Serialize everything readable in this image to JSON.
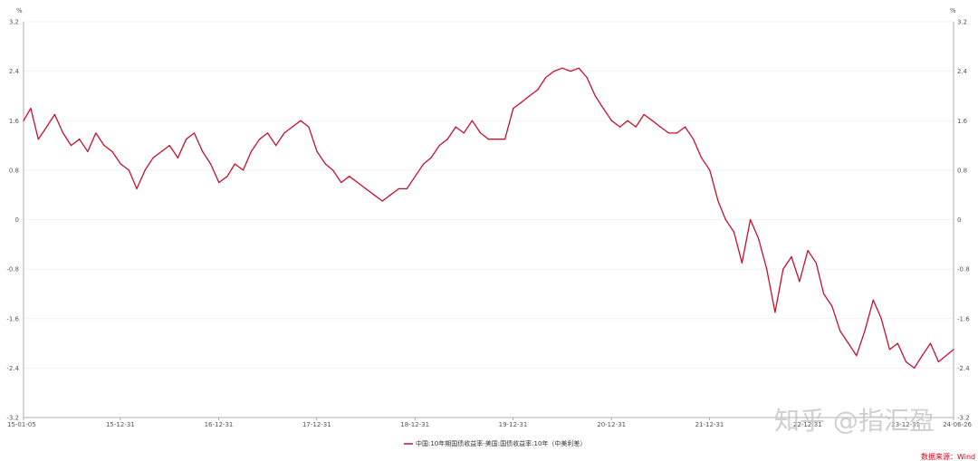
{
  "watermark": "知乎 @指汇盈",
  "source": "数据来源：Wind",
  "chart_data": {
    "type": "line",
    "title": "",
    "xlabel": "",
    "ylabel": "%",
    "y2label": "%",
    "ylim": [
      -3.2,
      3.2
    ],
    "yticks": [
      3.2,
      2.4,
      1.6,
      0.8,
      0,
      -0.8,
      -1.6,
      -2.4,
      -3.2
    ],
    "ytick_labels": [
      "3.2",
      "2.4",
      "1.6",
      "0.8",
      "0",
      "-0.8",
      "-1.6",
      "-2.4",
      "-3.2"
    ],
    "xlim": [
      "2015-01-05",
      "2024-06-26"
    ],
    "xticks": [
      "2015-01-05",
      "2015-12-31",
      "2016-12-31",
      "2017-12-31",
      "2018-12-31",
      "2019-12-31",
      "2020-12-31",
      "2021-12-31",
      "2022-12-31",
      "2023-12-31",
      "2024-06-26"
    ],
    "xtick_labels": [
      "15-01-05",
      "15-12-31",
      "16-12-31",
      "17-12-31",
      "18-12-31",
      "19-12-31",
      "20-12-31",
      "21-12-31",
      "22-12-31",
      "23-12-31",
      "24-06-26"
    ],
    "grid": true,
    "legend_position": "bottom",
    "color": "#c8102e",
    "series": [
      {
        "name": "中国:10年期国债收益率-美国:国债收益率:10年（中美利差）",
        "x": [
          "2015-01-05",
          "2015-02-01",
          "2015-03-01",
          "2015-04-01",
          "2015-05-01",
          "2015-06-01",
          "2015-07-01",
          "2015-08-01",
          "2015-09-01",
          "2015-10-01",
          "2015-11-01",
          "2015-12-01",
          "2016-01-01",
          "2016-02-01",
          "2016-03-01",
          "2016-04-01",
          "2016-05-01",
          "2016-06-01",
          "2016-07-01",
          "2016-08-01",
          "2016-09-01",
          "2016-10-01",
          "2016-11-01",
          "2016-12-01",
          "2017-01-01",
          "2017-02-01",
          "2017-03-01",
          "2017-04-01",
          "2017-05-01",
          "2017-06-01",
          "2017-07-01",
          "2017-08-01",
          "2017-09-01",
          "2017-10-01",
          "2017-11-01",
          "2017-12-01",
          "2018-01-01",
          "2018-02-01",
          "2018-03-01",
          "2018-04-01",
          "2018-05-01",
          "2018-06-01",
          "2018-07-01",
          "2018-08-01",
          "2018-09-01",
          "2018-10-01",
          "2018-11-01",
          "2018-12-01",
          "2019-01-01",
          "2019-02-01",
          "2019-03-01",
          "2019-04-01",
          "2019-05-01",
          "2019-06-01",
          "2019-07-01",
          "2019-08-01",
          "2019-09-01",
          "2019-10-01",
          "2019-11-01",
          "2019-12-01",
          "2020-01-01",
          "2020-02-01",
          "2020-03-01",
          "2020-04-01",
          "2020-05-01",
          "2020-06-01",
          "2020-07-01",
          "2020-08-01",
          "2020-09-01",
          "2020-10-01",
          "2020-11-01",
          "2020-12-01",
          "2021-01-01",
          "2021-02-01",
          "2021-03-01",
          "2021-04-01",
          "2021-05-01",
          "2021-06-01",
          "2021-07-01",
          "2021-08-01",
          "2021-09-01",
          "2021-10-01",
          "2021-11-01",
          "2021-12-01",
          "2022-01-01",
          "2022-02-01",
          "2022-03-01",
          "2022-04-01",
          "2022-05-01",
          "2022-06-01",
          "2022-07-01",
          "2022-08-01",
          "2022-09-01",
          "2022-10-01",
          "2022-11-01",
          "2022-12-01",
          "2023-01-01",
          "2023-02-01",
          "2023-03-01",
          "2023-04-01",
          "2023-05-01",
          "2023-06-01",
          "2023-07-01",
          "2023-08-01",
          "2023-09-01",
          "2023-10-01",
          "2023-11-01",
          "2023-12-01",
          "2024-01-01",
          "2024-02-01",
          "2024-03-01",
          "2024-04-01",
          "2024-05-01",
          "2024-06-26"
        ],
        "values": [
          1.6,
          1.8,
          1.3,
          1.5,
          1.7,
          1.4,
          1.2,
          1.3,
          1.1,
          1.4,
          1.2,
          1.1,
          0.9,
          0.8,
          0.5,
          0.8,
          1.0,
          1.1,
          1.2,
          1.0,
          1.3,
          1.4,
          1.1,
          0.9,
          0.6,
          0.7,
          0.9,
          0.8,
          1.1,
          1.3,
          1.4,
          1.2,
          1.4,
          1.5,
          1.6,
          1.5,
          1.1,
          0.9,
          0.8,
          0.6,
          0.7,
          0.6,
          0.5,
          0.4,
          0.3,
          0.4,
          0.5,
          0.5,
          0.7,
          0.9,
          1.0,
          1.2,
          1.3,
          1.5,
          1.4,
          1.6,
          1.4,
          1.3,
          1.3,
          1.3,
          1.8,
          1.9,
          2.0,
          2.1,
          2.3,
          2.4,
          2.45,
          2.4,
          2.45,
          2.3,
          2.0,
          1.8,
          1.6,
          1.5,
          1.6,
          1.5,
          1.7,
          1.6,
          1.5,
          1.4,
          1.4,
          1.5,
          1.3,
          1.0,
          0.8,
          0.3,
          0.0,
          -0.2,
          -0.7,
          0.0,
          -0.3,
          -0.8,
          -1.5,
          -0.8,
          -0.6,
          -1.0,
          -0.5,
          -0.7,
          -1.2,
          -1.4,
          -1.8,
          -2.0,
          -2.2,
          -1.8,
          -1.3,
          -1.6,
          -2.1,
          -2.0,
          -2.3,
          -2.4,
          -2.2,
          -2.0,
          -2.3,
          -2.1
        ]
      }
    ]
  }
}
